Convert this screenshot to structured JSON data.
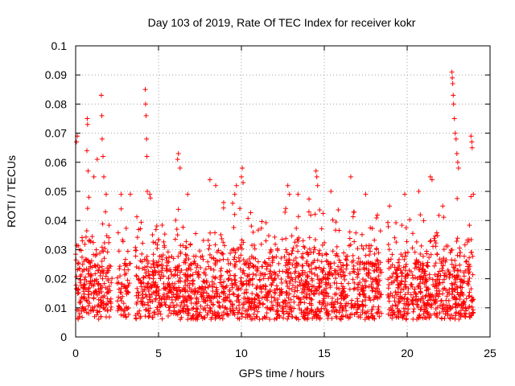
{
  "chart_data": {
    "type": "scatter",
    "title": "Day 103 of 2019, Rate Of TEC Index for receiver kokr",
    "xlabel": "GPS time / hours",
    "ylabel": "ROTI / TECUs",
    "xlim": [
      0,
      25
    ],
    "ylim": [
      0,
      0.1
    ],
    "x_ticks": [
      0,
      5,
      10,
      15,
      20,
      25
    ],
    "x_tick_labels": [
      "0",
      "5",
      "10",
      "15",
      "20",
      "25"
    ],
    "y_ticks": [
      0,
      0.01,
      0.02,
      0.03,
      0.04,
      0.05,
      0.06,
      0.07,
      0.08,
      0.09,
      0.1
    ],
    "y_tick_labels": [
      "0",
      "0.01",
      "0.02",
      "0.03",
      "0.04",
      "0.05",
      "0.06",
      "0.07",
      "0.08",
      "0.09",
      "0.1"
    ],
    "grid": true,
    "marker": "+",
    "color": "#ff0000",
    "series": [
      {
        "name": "ROTI",
        "approx_distribution": {
          "description": "dense cloud of points, mostly 0.005-0.03 TECU/min from 0 to 24 h",
          "coverage_hours": [
            0,
            24
          ],
          "data_gaps_hours": [
            [
              2.2,
              2.5
            ],
            [
              3.3,
              3.6
            ],
            [
              18.5,
              18.8
            ]
          ]
        },
        "notable_points": [
          {
            "x": 0.05,
            "y": 0.067
          },
          {
            "x": 0.1,
            "y": 0.069
          },
          {
            "x": 0.7,
            "y": 0.075
          },
          {
            "x": 0.72,
            "y": 0.073
          },
          {
            "x": 0.68,
            "y": 0.064
          },
          {
            "x": 0.75,
            "y": 0.057
          },
          {
            "x": 0.8,
            "y": 0.048
          },
          {
            "x": 1.1,
            "y": 0.055
          },
          {
            "x": 1.3,
            "y": 0.061
          },
          {
            "x": 1.55,
            "y": 0.083
          },
          {
            "x": 1.58,
            "y": 0.076
          },
          {
            "x": 1.6,
            "y": 0.068
          },
          {
            "x": 1.65,
            "y": 0.062
          },
          {
            "x": 1.7,
            "y": 0.055
          },
          {
            "x": 2.75,
            "y": 0.044
          },
          {
            "x": 4.2,
            "y": 0.085
          },
          {
            "x": 4.22,
            "y": 0.08
          },
          {
            "x": 4.25,
            "y": 0.076
          },
          {
            "x": 4.28,
            "y": 0.068
          },
          {
            "x": 4.3,
            "y": 0.062
          },
          {
            "x": 4.32,
            "y": 0.05
          },
          {
            "x": 6.2,
            "y": 0.063
          },
          {
            "x": 6.15,
            "y": 0.061
          },
          {
            "x": 6.3,
            "y": 0.058
          },
          {
            "x": 8.1,
            "y": 0.054
          },
          {
            "x": 8.45,
            "y": 0.052
          },
          {
            "x": 9.6,
            "y": 0.049
          },
          {
            "x": 9.7,
            "y": 0.052
          },
          {
            "x": 10.05,
            "y": 0.058
          },
          {
            "x": 10.0,
            "y": 0.055
          },
          {
            "x": 10.1,
            "y": 0.053
          },
          {
            "x": 12.8,
            "y": 0.052
          },
          {
            "x": 12.9,
            "y": 0.049
          },
          {
            "x": 14.5,
            "y": 0.057
          },
          {
            "x": 14.55,
            "y": 0.055
          },
          {
            "x": 14.6,
            "y": 0.052
          },
          {
            "x": 15.4,
            "y": 0.05
          },
          {
            "x": 16.6,
            "y": 0.055
          },
          {
            "x": 20.7,
            "y": 0.05
          },
          {
            "x": 21.4,
            "y": 0.055
          },
          {
            "x": 21.5,
            "y": 0.054
          },
          {
            "x": 22.7,
            "y": 0.091
          },
          {
            "x": 22.72,
            "y": 0.089
          },
          {
            "x": 22.75,
            "y": 0.087
          },
          {
            "x": 22.78,
            "y": 0.083
          },
          {
            "x": 22.8,
            "y": 0.08
          },
          {
            "x": 22.85,
            "y": 0.075
          },
          {
            "x": 22.9,
            "y": 0.07
          },
          {
            "x": 22.95,
            "y": 0.068
          },
          {
            "x": 23.0,
            "y": 0.063
          },
          {
            "x": 23.05,
            "y": 0.06
          },
          {
            "x": 23.1,
            "y": 0.058
          },
          {
            "x": 23.85,
            "y": 0.069
          },
          {
            "x": 23.9,
            "y": 0.067
          },
          {
            "x": 23.92,
            "y": 0.065
          }
        ]
      }
    ]
  }
}
